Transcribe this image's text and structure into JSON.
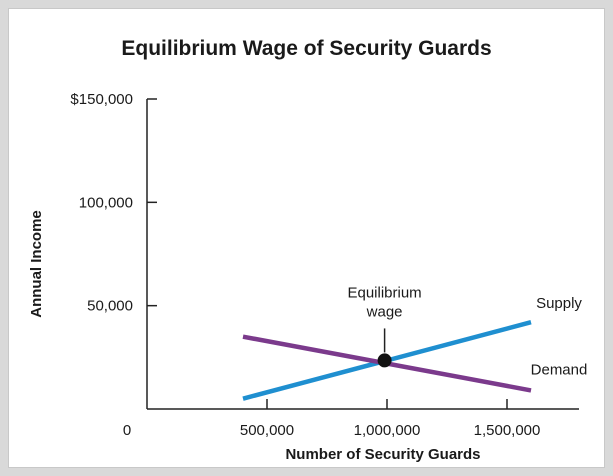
{
  "chart_data": {
    "type": "line",
    "title": "Equilibrium Wage of Security Guards",
    "xlabel": "Number of Security Guards",
    "ylabel": "Annual Income",
    "xlim": [
      0,
      1800000
    ],
    "ylim": [
      0,
      150000
    ],
    "x_ticks": [
      {
        "value": 0,
        "label": "0"
      },
      {
        "value": 500000,
        "label": "500,000"
      },
      {
        "value": 1000000,
        "label": "1,000,000"
      },
      {
        "value": 1500000,
        "label": "1,500,000"
      }
    ],
    "y_ticks": [
      {
        "value": 50000,
        "label": "50,000"
      },
      {
        "value": 100000,
        "label": "100,000"
      },
      {
        "value": 150000,
        "label": "$150,000"
      }
    ],
    "series": [
      {
        "name": "Supply",
        "color": "#1f8fd0",
        "points": [
          [
            400000,
            5000
          ],
          [
            1600000,
            42000
          ]
        ]
      },
      {
        "name": "Demand",
        "color": "#7b3a8c",
        "points": [
          [
            400000,
            35000
          ],
          [
            1600000,
            9000
          ]
        ]
      }
    ],
    "annotations": [
      {
        "text_line1": "Equilibrium",
        "text_line2": "wage",
        "x": 990000,
        "y": 23500
      }
    ],
    "grid": false
  }
}
